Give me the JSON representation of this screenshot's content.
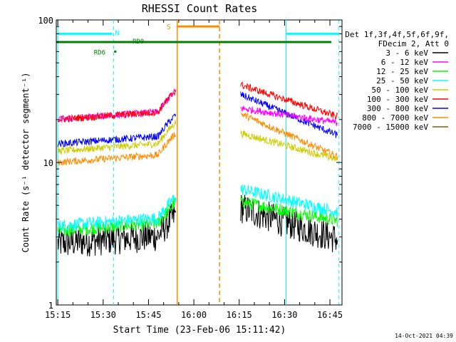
{
  "chart_data": {
    "type": "line",
    "title": "RHESSI Count Rates",
    "xlabel": "Start Time (23-Feb-06 15:11:42)",
    "ylabel": "Count Rate (s⁻¹ detector segment⁻¹)",
    "y_scale": "log",
    "ylim": [
      1,
      100
    ],
    "y_ticks": [
      {
        "value": 1,
        "label": "1"
      },
      {
        "value": 10,
        "label": "10"
      },
      {
        "value": 100,
        "label": "100"
      }
    ],
    "x_range_min": [
      914.5,
      1009
    ],
    "x_ticks": [
      {
        "min": 915,
        "label": "15:15"
      },
      {
        "min": 930,
        "label": "15:30"
      },
      {
        "min": 945,
        "label": "15:45"
      },
      {
        "min": 960,
        "label": "16:00"
      },
      {
        "min": 975,
        "label": "16:15"
      },
      {
        "min": 990,
        "label": "16:30"
      },
      {
        "min": 1005,
        "label": "16:45"
      }
    ],
    "legend_header": [
      "Det 1f,3f,4f,5f,6f,9f,",
      "FDecim 2, Att 0"
    ],
    "legend_position": "right",
    "series": [
      {
        "name": "3 - 6 keV",
        "color": "#000000",
        "start_level": 2.7,
        "end_level": 2.9,
        "peak_level": 4.8
      },
      {
        "name": "6 - 12 keV",
        "color": "#ff00ff",
        "start_level": 20,
        "end_level": 19,
        "peak_level": 24
      },
      {
        "name": "12 - 25 keV",
        "color": "#00ff00",
        "start_level": 3.3,
        "end_level": 3.9,
        "peak_level": 5.3
      },
      {
        "name": "25 - 50 keV",
        "color": "#00ffff",
        "start_level": 3.6,
        "end_level": 4.5,
        "peak_level": 6.5
      },
      {
        "name": "50 - 100 keV",
        "color": "#cccc00",
        "start_level": 12,
        "end_level": 10.5,
        "peak_level": 16
      },
      {
        "name": "100 - 300 keV",
        "color": "#ff0000",
        "start_level": 20,
        "end_level": 21,
        "peak_level": 35
      },
      {
        "name": "300 - 800 keV",
        "color": "#0000ff",
        "start_level": 13.5,
        "end_level": 15.5,
        "peak_level": 30
      },
      {
        "name": "800 - 7000 keV",
        "color": "#ff8c00",
        "start_level": 10,
        "end_level": 11,
        "peak_level": 22
      },
      {
        "name": "7000 - 15000 keV",
        "color": "#8b5a00",
        "start_level": null,
        "end_level": null,
        "peak_level": null
      }
    ],
    "gaps": [
      [
        954.0,
        975.5
      ]
    ],
    "night_markers": {
      "label": "N",
      "color": "#00ffff",
      "solid_at": [
        915,
        990.5
      ],
      "dashed_at": [
        933.5,
        1008
      ],
      "bars": [
        [
          915,
          933
        ],
        [
          990.5,
          1008
        ]
      ],
      "bar_level": 80
    },
    "saa_markers": {
      "label": "S",
      "color": "#ff8c00",
      "solid_at": 954.5,
      "dashed_at": 968.5,
      "bar": [
        954.5,
        968.5
      ],
      "bar_level": 90
    },
    "attenuator_state": {
      "color": "#008000",
      "level": 70,
      "labels": [
        {
          "text": "RD6",
          "at_min": 934,
          "level": 60
        },
        {
          "text": "RD0",
          "at_min": 939,
          "level": 70
        }
      ]
    },
    "footer_date": "14-Oct-2021 04:39"
  }
}
